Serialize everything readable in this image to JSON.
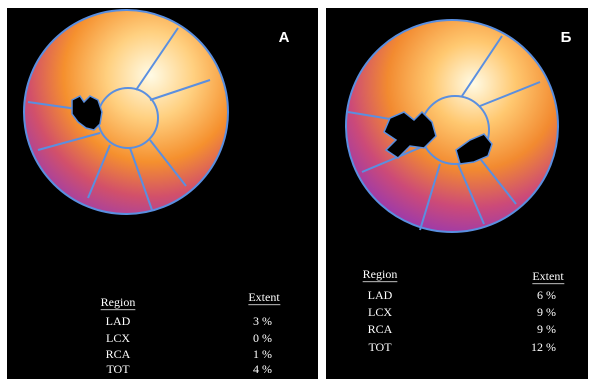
{
  "panels": [
    {
      "label": "А",
      "table": {
        "headers": [
          "Region",
          "Extent"
        ],
        "rows": [
          [
            "LAD",
            "3 %"
          ],
          [
            "LCX",
            "0 %"
          ],
          [
            "RCA",
            "1 %"
          ],
          [
            "TOT",
            "4 %"
          ]
        ]
      }
    },
    {
      "label": "Б",
      "table": {
        "headers": [
          "Region",
          "Extent"
        ],
        "rows": [
          [
            "LAD",
            "6 %"
          ],
          [
            "LCX",
            "9 %"
          ],
          [
            "RCA",
            "9 %"
          ],
          [
            "TOT",
            "12 %"
          ]
        ]
      }
    }
  ]
}
